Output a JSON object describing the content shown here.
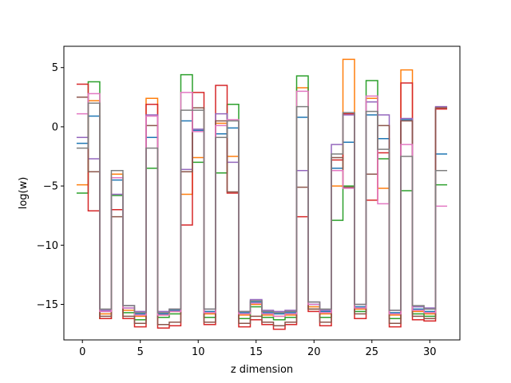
{
  "chart_data": {
    "type": "line",
    "drawstyle": "steps-mid",
    "xlabel": "z dimension",
    "ylabel": "log(w)",
    "xlim": [
      -1.6,
      32.6
    ],
    "ylim": [
      -18.0,
      6.8
    ],
    "xticks": [
      0,
      5,
      10,
      15,
      20,
      25,
      30
    ],
    "yticks": [
      -15,
      -10,
      -5,
      0,
      5
    ],
    "x": [
      0,
      1,
      2,
      3,
      4,
      5,
      6,
      7,
      8,
      9,
      10,
      11,
      12,
      13,
      14,
      15,
      16,
      17,
      18,
      19,
      20,
      21,
      22,
      23,
      24,
      25,
      26,
      27,
      28,
      29,
      30,
      31
    ],
    "series": [
      {
        "color": "#1f77b4",
        "values": [
          -1.4,
          0.9,
          -15.6,
          -4.5,
          -15.3,
          -15.8,
          -0.9,
          -15.8,
          -15.5,
          0.5,
          -0.3,
          -15.6,
          -0.6,
          -0.1,
          -15.7,
          -14.8,
          -15.7,
          -15.8,
          -15.7,
          0.8,
          -15.0,
          -15.6,
          -3.5,
          -1.3,
          -15.2,
          1.0,
          -1.0,
          -15.7,
          0.6,
          -15.4,
          -15.6,
          -2.3
        ]
      },
      {
        "color": "#ff7f0e",
        "values": [
          -4.9,
          2.2,
          -15.8,
          -4.0,
          -15.5,
          -16.0,
          2.4,
          -15.9,
          -15.6,
          -5.7,
          -2.6,
          -15.8,
          0.3,
          -2.5,
          -15.9,
          -15.0,
          -15.9,
          -16.0,
          -15.9,
          3.3,
          -15.2,
          -15.8,
          -5.0,
          5.7,
          -15.4,
          2.4,
          -5.2,
          -15.9,
          4.8,
          -15.6,
          -15.8,
          1.6
        ]
      },
      {
        "color": "#2ca02c",
        "values": [
          -5.6,
          3.8,
          -16.2,
          -5.8,
          -15.7,
          -16.3,
          -3.5,
          -16.1,
          -15.8,
          4.4,
          -3.0,
          -16.1,
          -3.9,
          1.9,
          -16.2,
          -15.2,
          -16.1,
          -16.3,
          -16.1,
          4.3,
          -15.4,
          -16.1,
          -7.9,
          -5.0,
          -15.6,
          3.9,
          -2.7,
          -16.2,
          -5.4,
          -15.8,
          -16.0,
          -4.9
        ]
      },
      {
        "color": "#d62728",
        "values": [
          3.6,
          -7.1,
          -16.2,
          -7.0,
          -16.2,
          -16.9,
          1.9,
          -17.0,
          -16.8,
          -8.3,
          2.9,
          -16.7,
          3.5,
          -5.6,
          -16.9,
          -16.3,
          -16.7,
          -17.1,
          -16.7,
          -7.6,
          -15.6,
          -16.8,
          -2.8,
          1.1,
          -16.2,
          -6.2,
          -2.2,
          -16.9,
          3.7,
          -16.3,
          -16.4,
          1.5
        ]
      },
      {
        "color": "#9467bd",
        "values": [
          -0.9,
          -2.7,
          -15.5,
          -5.7,
          -15.1,
          -15.6,
          1.0,
          -15.6,
          -15.4,
          -3.6,
          -0.2,
          -15.4,
          1.1,
          -3.0,
          -15.6,
          -14.6,
          -15.5,
          -15.6,
          -15.5,
          -3.7,
          -14.8,
          -15.5,
          -1.5,
          1.0,
          -15.0,
          2.1,
          1.0,
          -15.5,
          0.7,
          -15.2,
          -15.3,
          1.7
        ]
      },
      {
        "color": "#8c564b",
        "values": [
          2.5,
          -3.8,
          -16.0,
          -7.6,
          -16.0,
          -16.6,
          0.1,
          -16.7,
          -16.5,
          -3.8,
          1.6,
          -16.5,
          0.5,
          -5.5,
          -16.6,
          -16.0,
          -16.5,
          -16.8,
          -16.5,
          -5.1,
          -15.4,
          -16.5,
          -2.6,
          -5.1,
          -15.8,
          -4.0,
          0.1,
          -16.6,
          0.5,
          -16.0,
          -16.2,
          1.6
        ]
      },
      {
        "color": "#e377c2",
        "values": [
          1.1,
          2.8,
          -15.6,
          -4.3,
          -15.3,
          -15.9,
          0.9,
          -15.9,
          -15.6,
          2.9,
          -0.4,
          -15.7,
          0.1,
          0.6,
          -15.8,
          -14.9,
          -15.8,
          -16.0,
          -15.8,
          3.0,
          -15.0,
          -15.7,
          -3.7,
          -5.2,
          -15.3,
          2.6,
          -6.5,
          -15.8,
          -1.5,
          -15.5,
          -15.7,
          -6.7
        ]
      },
      {
        "color": "#7f7f7f",
        "values": [
          -1.8,
          2.0,
          -15.4,
          -3.7,
          -15.1,
          -15.7,
          -1.8,
          -15.7,
          -15.4,
          1.4,
          1.4,
          -15.4,
          -0.9,
          0.5,
          -15.6,
          -14.7,
          -15.6,
          -15.7,
          -15.6,
          1.7,
          -14.8,
          -15.4,
          -2.3,
          1.2,
          -15.0,
          1.3,
          -1.9,
          -15.5,
          -2.5,
          -15.1,
          -15.4,
          -3.7
        ]
      }
    ]
  }
}
